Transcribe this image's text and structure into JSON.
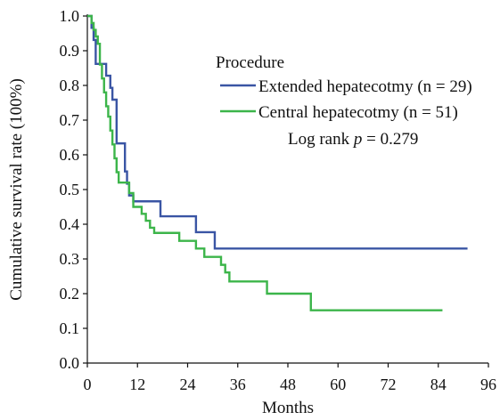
{
  "chart_data": {
    "type": "line",
    "title": "",
    "xlabel": "Months",
    "ylabel": "Cumulative survival rate (100%)",
    "xlim": [
      0,
      96
    ],
    "ylim": [
      0,
      1.0
    ],
    "x_ticks": [
      0,
      12,
      24,
      36,
      48,
      60,
      72,
      84,
      96
    ],
    "y_ticks": [
      0.0,
      0.1,
      0.2,
      0.3,
      0.4,
      0.5,
      0.6,
      0.7,
      0.8,
      0.9,
      1.0
    ],
    "x_tick_labels": [
      "0",
      "12",
      "24",
      "36",
      "48",
      "60",
      "72",
      "84",
      "96"
    ],
    "y_tick_labels": [
      "0.0",
      "0.1",
      "0.2",
      "0.3",
      "0.4",
      "0.5",
      "0.6",
      "0.7",
      "0.8",
      "0.9",
      "1.0"
    ],
    "step": true,
    "grid": false,
    "legend": {
      "title": "Procedure",
      "position": "top-right"
    },
    "annotation": {
      "prefix": "Log rank ",
      "symbol": "p",
      "suffix": " = 0.279"
    },
    "series": [
      {
        "name": "Extended hepatecotmy (n = 29)",
        "color": "#3a55a4",
        "x": [
          0,
          1,
          1.5,
          2,
          3,
          4.5,
          5.5,
          6,
          7,
          9,
          9.5,
          10,
          11,
          12,
          17.5,
          26,
          30.5,
          91
        ],
        "y": [
          1.0,
          0.966,
          0.931,
          0.862,
          0.862,
          0.828,
          0.793,
          0.759,
          0.633,
          0.552,
          0.517,
          0.483,
          0.466,
          0.466,
          0.423,
          0.377,
          0.33,
          0.33
        ]
      },
      {
        "name": "Central hepatecotmy (n = 51)",
        "color": "#3cb54a",
        "x": [
          0,
          1,
          1.5,
          2,
          2.5,
          3,
          3.5,
          4,
          4.5,
          5,
          5.5,
          6,
          6.5,
          7,
          7.5,
          8,
          10,
          11,
          13,
          14,
          15,
          16,
          22,
          26,
          28,
          32,
          33,
          34,
          35,
          43,
          53.5,
          85
        ],
        "y": [
          1.0,
          0.98,
          0.96,
          0.941,
          0.92,
          0.86,
          0.82,
          0.78,
          0.74,
          0.71,
          0.67,
          0.63,
          0.59,
          0.55,
          0.52,
          0.52,
          0.49,
          0.45,
          0.43,
          0.41,
          0.39,
          0.375,
          0.352,
          0.33,
          0.306,
          0.283,
          0.261,
          0.235,
          0.235,
          0.2,
          0.152,
          0.152
        ]
      }
    ]
  }
}
